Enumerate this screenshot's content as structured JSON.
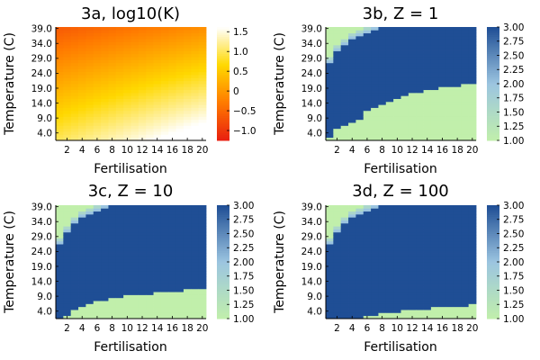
{
  "chart_data": [
    {
      "type": "heatmap",
      "title": "3a, log10(K)",
      "xlabel": "Fertilisation",
      "ylabel": "Temperature (C)",
      "x_tick_labels": [
        "2",
        "4",
        "6",
        "8",
        "10",
        "12",
        "14",
        "16",
        "18",
        "20"
      ],
      "y_tick_labels": [
        "4.0",
        "9.0",
        "14.0",
        "19.0",
        "24.0",
        "29.0",
        "34.0",
        "39.0"
      ],
      "x_cols": 20,
      "y_rows": 38,
      "colormap": [
        "#e81e10",
        "#ff7a00",
        "#ffd800",
        "#ffffff"
      ],
      "colorbar": {
        "min": -1.25,
        "max": 1.62,
        "ticks": [
          "1.5",
          "1.0",
          "0.5",
          "0",
          "−0.5",
          "−1.0"
        ],
        "tick_values": [
          1.5,
          1.0,
          0.5,
          0,
          -0.5,
          -1.0
        ]
      },
      "field": {
        "kind": "gradient",
        "base": 1.0,
        "fert_weight": 0.9,
        "temp_weight": -1.6,
        "low_corner": -1.2
      }
    },
    {
      "type": "heatmap",
      "title": "3b, Z = 1",
      "xlabel": "Fertilisation",
      "ylabel": "Temperature (C)",
      "x_tick_labels": [
        "2",
        "4",
        "6",
        "8",
        "10",
        "12",
        "14",
        "16",
        "18",
        "20"
      ],
      "y_tick_labels": [
        "4.0",
        "9.0",
        "14.0",
        "19.0",
        "24.0",
        "29.0",
        "34.0",
        "39.0"
      ],
      "x_cols": 20,
      "y_rows": 38,
      "colormap": [
        "#c1efab",
        "#9cc5e0",
        "#1f4e95"
      ],
      "colorbar": {
        "min": 1.0,
        "max": 3.0,
        "ticks": [
          "3.00",
          "2.75",
          "2.50",
          "2.25",
          "2.00",
          "1.75",
          "1.50",
          "1.25",
          "1.00"
        ],
        "tick_values": [
          3.0,
          2.75,
          2.5,
          2.25,
          2.0,
          1.75,
          1.5,
          1.25,
          1.0
        ]
      },
      "field": {
        "kind": "regions",
        "lower_boundary_row": [
          1,
          4,
          5,
          6,
          7,
          10,
          11,
          12,
          13,
          14,
          15,
          16,
          16,
          17,
          17,
          18,
          18,
          18,
          19,
          19
        ],
        "upper_boundary_row": [
          26,
          30,
          32,
          34,
          35,
          36,
          37,
          38,
          38,
          38,
          38,
          38,
          38,
          38,
          38,
          38,
          38,
          38,
          38,
          38
        ]
      }
    },
    {
      "type": "heatmap",
      "title": "3c, Z = 10",
      "xlabel": "Fertilisation",
      "ylabel": "Temperature (C)",
      "x_tick_labels": [
        "2",
        "4",
        "6",
        "8",
        "10",
        "12",
        "14",
        "16",
        "18",
        "20"
      ],
      "y_tick_labels": [
        "4.0",
        "9.0",
        "14.0",
        "19.0",
        "24.0",
        "29.0",
        "34.0",
        "39.0"
      ],
      "x_cols": 20,
      "y_rows": 38,
      "colormap": [
        "#c1efab",
        "#9cc5e0",
        "#1f4e95"
      ],
      "colorbar": {
        "min": 1.0,
        "max": 3.0,
        "ticks": [
          "3.00",
          "2.75",
          "2.50",
          "2.25",
          "2.00",
          "1.75",
          "1.50",
          "1.25",
          "1.00"
        ],
        "tick_values": [
          3.0,
          2.75,
          2.5,
          2.25,
          2.0,
          1.75,
          1.5,
          1.25,
          1.0
        ]
      },
      "field": {
        "kind": "regions",
        "lower_boundary_row": [
          0,
          1,
          3,
          4,
          5,
          6,
          6,
          7,
          7,
          8,
          8,
          8,
          8,
          9,
          9,
          9,
          9,
          10,
          10,
          10
        ],
        "upper_boundary_row": [
          25,
          29,
          32,
          34,
          35,
          36,
          37,
          38,
          38,
          38,
          38,
          38,
          38,
          38,
          38,
          38,
          38,
          38,
          38,
          38
        ]
      }
    },
    {
      "type": "heatmap",
      "title": "3d, Z = 100",
      "xlabel": "Fertilisation",
      "ylabel": "Temperature (C)",
      "x_tick_labels": [
        "2",
        "4",
        "6",
        "8",
        "10",
        "12",
        "14",
        "16",
        "18",
        "20"
      ],
      "y_tick_labels": [
        "4.0",
        "9.0",
        "14.0",
        "19.0",
        "24.0",
        "29.0",
        "34.0",
        "39.0"
      ],
      "x_cols": 20,
      "y_rows": 38,
      "colormap": [
        "#c1efab",
        "#9cc5e0",
        "#1f4e95"
      ],
      "colorbar": {
        "min": 1.0,
        "max": 3.0,
        "ticks": [
          "3.00",
          "2.75",
          "2.50",
          "2.25",
          "2.00",
          "1.75",
          "1.50",
          "1.25",
          "1.00"
        ],
        "tick_values": [
          3.0,
          2.75,
          2.5,
          2.25,
          2.0,
          1.75,
          1.5,
          1.25,
          1.0
        ]
      },
      "field": {
        "kind": "regions",
        "lower_boundary_row": [
          0,
          0,
          0,
          0,
          0,
          1,
          1,
          2,
          2,
          2,
          3,
          3,
          3,
          3,
          4,
          4,
          4,
          4,
          4,
          5
        ],
        "upper_boundary_row": [
          25,
          29,
          32,
          34,
          35,
          36,
          37,
          38,
          38,
          38,
          38,
          38,
          38,
          38,
          38,
          38,
          38,
          38,
          38,
          38
        ]
      }
    }
  ]
}
